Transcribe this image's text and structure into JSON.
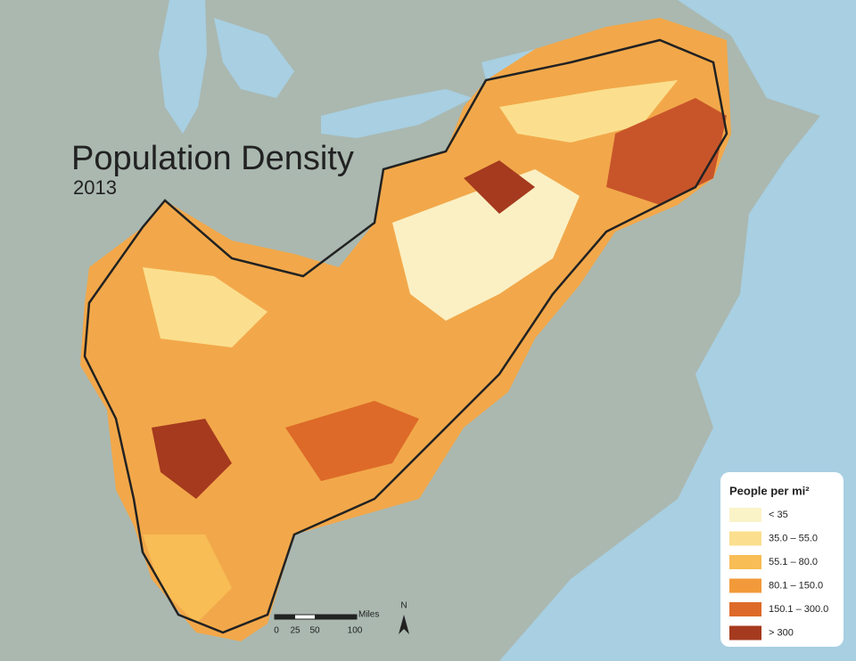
{
  "title": "Population Density",
  "subtitle": "2013",
  "legend": {
    "title": "People per mi²",
    "items": [
      {
        "label": "< 35",
        "color": "#fbf3c8"
      },
      {
        "label": "35.0 – 55.0",
        "color": "#fbdf8e"
      },
      {
        "label": "55.1 – 80.0",
        "color": "#f8bd55"
      },
      {
        "label": "80.1 – 150.0",
        "color": "#f29a3a"
      },
      {
        "label": "150.1 – 300.0",
        "color": "#dd6a28"
      },
      {
        "label": "> 300",
        "color": "#a53a1e"
      }
    ]
  },
  "scale_bar": {
    "unit": "Miles",
    "labels": [
      "0",
      "25",
      "50",
      "100"
    ]
  },
  "north_arrow": "N"
}
